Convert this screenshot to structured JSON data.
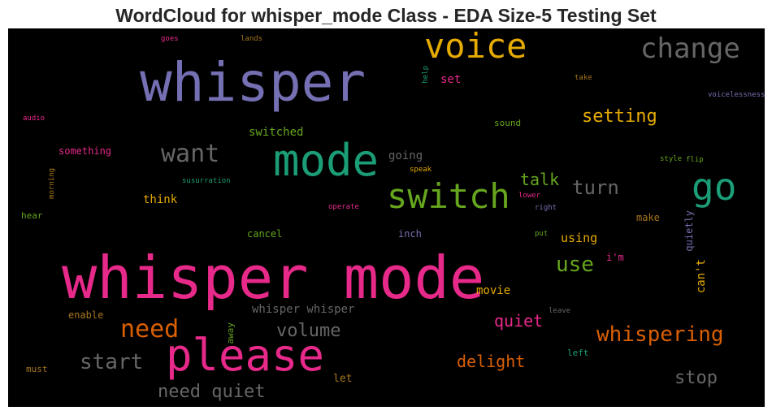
{
  "chart_data": {
    "type": "wordcloud",
    "title": "WordCloud for whisper_mode Class - EDA Size-5 Testing Set",
    "background": "#000000",
    "colormap": "Dark2",
    "words": [
      {
        "text": "whisper mode",
        "color": "#e7298a"
      },
      {
        "text": "whisper",
        "color": "#7570b3"
      },
      {
        "text": "please",
        "color": "#e7298a"
      },
      {
        "text": "mode",
        "color": "#1b9e77"
      },
      {
        "text": "switch",
        "color": "#66a61e"
      },
      {
        "text": "voice",
        "color": "#e6ab02"
      },
      {
        "text": "go",
        "color": "#1b9e77"
      },
      {
        "text": "change",
        "color": "#666666"
      },
      {
        "text": "want",
        "color": "#666666"
      },
      {
        "text": "need",
        "color": "#d95f02"
      },
      {
        "text": "whispering",
        "color": "#d95f02"
      },
      {
        "text": "start",
        "color": "#666666"
      },
      {
        "text": "use",
        "color": "#66a61e"
      },
      {
        "text": "need quiet",
        "color": "#666666"
      },
      {
        "text": "turn",
        "color": "#666666"
      },
      {
        "text": "volume",
        "color": "#666666"
      },
      {
        "text": "stop",
        "color": "#666666"
      },
      {
        "text": "setting",
        "color": "#e6ab02"
      },
      {
        "text": "delight",
        "color": "#d95f02"
      },
      {
        "text": "quiet",
        "color": "#e7298a"
      },
      {
        "text": "talk",
        "color": "#66a61e"
      },
      {
        "text": "whisper whisper",
        "color": "#666666"
      },
      {
        "text": "switched",
        "color": "#66a61e"
      },
      {
        "text": "think",
        "color": "#e6ab02"
      },
      {
        "text": "something",
        "color": "#e7298a"
      },
      {
        "text": "going",
        "color": "#666666"
      },
      {
        "text": "using",
        "color": "#e6ab02"
      },
      {
        "text": "movie",
        "color": "#e6ab02"
      },
      {
        "text": "set",
        "color": "#e7298a"
      },
      {
        "text": "can't",
        "color": "#e6ab02"
      },
      {
        "text": "sound",
        "color": "#66a61e"
      },
      {
        "text": "cancel",
        "color": "#66a61e"
      },
      {
        "text": "inch",
        "color": "#7570b3"
      },
      {
        "text": "make",
        "color": "#a6761d"
      },
      {
        "text": "quietly",
        "color": "#7570b3"
      },
      {
        "text": "enable",
        "color": "#a6761d"
      },
      {
        "text": "must",
        "color": "#a6761d"
      },
      {
        "text": "let",
        "color": "#a6761d"
      },
      {
        "text": "left",
        "color": "#1b9e77"
      },
      {
        "text": "away",
        "color": "#66a61e"
      },
      {
        "text": "hear",
        "color": "#66a61e"
      },
      {
        "text": "i'm",
        "color": "#e7298a"
      },
      {
        "text": "goes",
        "color": "#e7298a"
      },
      {
        "text": "lands",
        "color": "#a6761d"
      },
      {
        "text": "help",
        "color": "#1b9e77"
      },
      {
        "text": "take",
        "color": "#a6761d"
      },
      {
        "text": "voicelessness",
        "color": "#7570b3"
      },
      {
        "text": "audio",
        "color": "#e7298a"
      },
      {
        "text": "speak",
        "color": "#e6ab02"
      },
      {
        "text": "style",
        "color": "#66a61e"
      },
      {
        "text": "flip",
        "color": "#66a61e"
      },
      {
        "text": "morning",
        "color": "#a6761d"
      },
      {
        "text": "susurration",
        "color": "#1b9e77"
      },
      {
        "text": "lower",
        "color": "#e7298a"
      },
      {
        "text": "operate",
        "color": "#e7298a"
      },
      {
        "text": "right",
        "color": "#7570b3"
      },
      {
        "text": "put",
        "color": "#66a61e"
      },
      {
        "text": "leave",
        "color": "#666666"
      }
    ]
  }
}
